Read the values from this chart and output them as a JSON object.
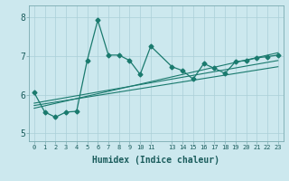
{
  "title": "",
  "xlabel": "Humidex (Indice chaleur)",
  "ylabel": "",
  "bg_color": "#cce8ee",
  "line_color": "#1a7a6e",
  "grid_color": "#aacfd8",
  "ylim": [
    4.8,
    8.3
  ],
  "xlim": [
    -0.5,
    23.5
  ],
  "y_ticks": [
    5,
    6,
    7,
    8
  ],
  "main_x": [
    0,
    1,
    2,
    3,
    4,
    5,
    6,
    7,
    8,
    9,
    10,
    11,
    13,
    14,
    15,
    16,
    17,
    18,
    19,
    20,
    21,
    22,
    23
  ],
  "main_y": [
    6.05,
    5.55,
    5.42,
    5.55,
    5.57,
    6.88,
    7.92,
    7.02,
    7.02,
    6.88,
    6.52,
    7.25,
    6.72,
    6.62,
    6.4,
    6.8,
    6.68,
    6.55,
    6.85,
    6.88,
    6.95,
    6.98,
    7.02
  ],
  "trend1_x": [
    0,
    23
  ],
  "trend1_y": [
    5.72,
    6.72
  ],
  "trend2_x": [
    0,
    23
  ],
  "trend2_y": [
    5.78,
    6.88
  ],
  "trend3_x": [
    0,
    23
  ],
  "trend3_y": [
    5.65,
    7.08
  ],
  "xtick_positions": [
    0,
    1,
    2,
    3,
    4,
    5,
    6,
    7,
    8,
    9,
    10,
    11,
    13,
    14,
    15,
    16,
    17,
    18,
    19,
    20,
    21,
    22,
    23
  ],
  "xtick_labels": [
    "0",
    "1",
    "2",
    "3",
    "4",
    "5",
    "6",
    "7",
    "8",
    "9",
    "10",
    "11",
    "13",
    "14",
    "15",
    "16",
    "17",
    "18",
    "19",
    "20",
    "21",
    "22",
    "23"
  ],
  "xlabel_fontsize": 7,
  "tick_fontsize": 5,
  "marker_size": 2.5
}
